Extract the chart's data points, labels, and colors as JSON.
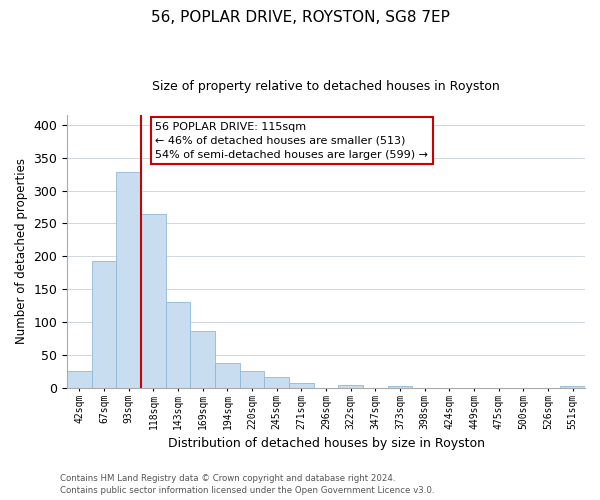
{
  "title": "56, POPLAR DRIVE, ROYSTON, SG8 7EP",
  "subtitle": "Size of property relative to detached houses in Royston",
  "xlabel": "Distribution of detached houses by size in Royston",
  "ylabel": "Number of detached properties",
  "bar_labels": [
    "42sqm",
    "67sqm",
    "93sqm",
    "118sqm",
    "143sqm",
    "169sqm",
    "194sqm",
    "220sqm",
    "245sqm",
    "271sqm",
    "296sqm",
    "322sqm",
    "347sqm",
    "373sqm",
    "398sqm",
    "424sqm",
    "449sqm",
    "475sqm",
    "500sqm",
    "526sqm",
    "551sqm"
  ],
  "bar_values": [
    25,
    193,
    328,
    265,
    130,
    87,
    38,
    26,
    17,
    8,
    0,
    5,
    0,
    3,
    0,
    0,
    0,
    0,
    0,
    0,
    3
  ],
  "bar_color": "#c9ddf0",
  "bar_edge_color": "#90b8d8",
  "ylim": [
    0,
    415
  ],
  "yticks": [
    0,
    50,
    100,
    150,
    200,
    250,
    300,
    350,
    400
  ],
  "property_line_color": "#cc0000",
  "annotation_text": "56 POPLAR DRIVE: 115sqm\n← 46% of detached houses are smaller (513)\n54% of semi-detached houses are larger (599) →",
  "annotation_box_facecolor": "#ffffff",
  "annotation_box_edgecolor": "#cc0000",
  "footer_line1": "Contains HM Land Registry data © Crown copyright and database right 2024.",
  "footer_line2": "Contains public sector information licensed under the Open Government Licence v3.0.",
  "background_color": "#ffffff",
  "grid_color": "#d0d8e0"
}
